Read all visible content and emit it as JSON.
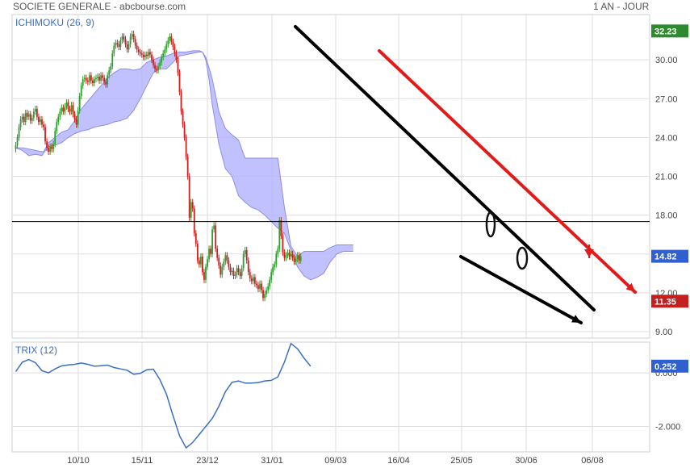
{
  "header": {
    "title": "SOCIETE GENERALE - abcbourse.com",
    "period": "1 AN - JOUR"
  },
  "colors": {
    "up": "#2e9e2e",
    "down": "#cc1f1f",
    "cloud": "#b6b6ff",
    "cloud_line": "#8d8de6",
    "badge_green": "#2d8a2d",
    "badge_blue": "#3060d0",
    "badge_red": "#c42020",
    "trix_line": "#3a6fc4",
    "grid": "#dddddd",
    "annot_black": "#000000",
    "annot_red": "#e31a1a"
  },
  "chart_data": [
    {
      "type": "candlestick",
      "subtitle": "ICHIMOKU (26, 9)",
      "ylim": [
        8.5,
        33.5
      ],
      "yticks": [
        "9.00",
        "12.00",
        "15.00",
        "18.00",
        "21.00",
        "24.00",
        "27.00",
        "30.00"
      ],
      "x_ticks": [
        "10/10",
        "15/11",
        "23/12",
        "31/01",
        "09/03",
        "16/04",
        "25/05",
        "30/06",
        "06/08"
      ],
      "horizontal_line": 17.5,
      "badges": [
        {
          "label": "32.23",
          "value": 32.23,
          "color": "green"
        },
        {
          "label": "14.82",
          "value": 14.82,
          "color": "blue"
        },
        {
          "label": "11.35",
          "value": 11.35,
          "color": "red"
        }
      ],
      "closes": [
        23.4,
        24.0,
        24.8,
        25.4,
        25.6,
        25.2,
        25.9,
        25.6,
        25.8,
        25.3,
        25.5,
        26.0,
        26.2,
        25.6,
        25.2,
        25.4,
        25.0,
        24.8,
        23.7,
        23.2,
        22.9,
        23.3,
        23.1,
        23.5,
        24.5,
        25.2,
        25.6,
        26.0,
        26.3,
        26.0,
        26.4,
        26.7,
        26.2,
        26.0,
        26.5,
        25.8,
        25.4,
        25.0,
        26.1,
        27.2,
        28.0,
        28.5,
        28.6,
        28.4,
        28.3,
        28.8,
        28.4,
        28.2,
        28.5,
        28.6,
        28.7,
        28.4,
        28.8,
        28.6,
        28.3,
        28.1,
        28.8,
        29.2,
        29.5,
        30.5,
        31.1,
        31.3,
        31.2,
        31.0,
        31.5,
        31.8,
        31.6,
        31.2,
        30.8,
        31.2,
        31.8,
        32.0,
        31.6,
        31.1,
        30.8,
        30.6,
        30.5,
        30.4,
        30.2,
        30.4,
        30.3,
        30.6,
        30.4,
        30.0,
        29.6,
        29.3,
        29.2,
        29.5,
        29.8,
        30.2,
        30.5,
        30.8,
        31.2,
        31.5,
        31.8,
        31.4,
        31.0,
        30.5,
        30.0,
        29.0,
        27.5,
        26.0,
        25.0,
        24.0,
        22.5,
        21.0,
        17.8,
        19.0,
        18.5,
        16.6,
        15.8,
        14.5,
        14.2,
        14.8,
        13.6,
        13.0,
        14.0,
        14.6,
        15.4,
        15.0,
        16.9,
        17.2,
        15.4,
        14.7,
        14.1,
        13.4,
        14.0,
        14.4,
        14.9,
        14.5,
        14.0,
        13.6,
        13.7,
        13.3,
        13.4,
        13.9,
        13.6,
        13.3,
        13.9,
        15.0,
        15.3,
        14.5,
        13.6,
        13.1,
        12.9,
        13.2,
        12.7,
        12.6,
        12.3,
        12.7,
        12.2,
        11.6,
        11.9,
        12.2,
        12.5,
        13.0,
        13.6,
        14.0,
        14.2,
        15.0,
        15.4,
        17.6,
        16.4,
        15.1,
        14.7,
        14.9,
        15.1,
        14.8,
        15.0,
        14.7,
        14.4,
        14.6,
        14.9,
        14.5,
        14.82
      ],
      "cloud": {
        "x": [
          0,
          4,
          8,
          12,
          16,
          17,
          20,
          24,
          28,
          32,
          36,
          40,
          44,
          48,
          52,
          56,
          60,
          64,
          68,
          72,
          76,
          80,
          84,
          88,
          92,
          96,
          100,
          104,
          108,
          112,
          114,
          116,
          118,
          120,
          124,
          128,
          132,
          136,
          140,
          144,
          148,
          152,
          156,
          160,
          164,
          168,
          172,
          176,
          180,
          184,
          188,
          192,
          196,
          200,
          204,
          206
        ],
        "span_a": [
          23.2,
          23.2,
          23.1,
          23.0,
          22.9,
          22.9,
          23.6,
          24.0,
          24.4,
          24.6,
          25.3,
          26.2,
          26.8,
          27.4,
          28.0,
          28.6,
          29.0,
          29.3,
          29.3,
          29.2,
          29.3,
          29.8,
          30.0,
          30.2,
          30.3,
          30.5,
          30.6,
          30.6,
          30.7,
          30.7,
          30.6,
          30.2,
          29.4,
          28.5,
          26.0,
          24.7,
          24.2,
          23.8,
          22.4,
          22.4,
          22.4,
          22.4,
          22.4,
          22.4,
          18.6,
          15.6,
          14.8,
          15.2,
          15.2,
          15.2,
          15.2,
          15.5,
          15.7,
          15.7,
          15.7,
          15.7
        ],
        "span_b": [
          23.2,
          23.0,
          22.6,
          22.7,
          22.6,
          22.8,
          23.3,
          23.4,
          23.6,
          24.0,
          24.3,
          24.5,
          24.6,
          24.8,
          24.9,
          25.0,
          25.2,
          25.3,
          25.5,
          26.1,
          27.0,
          28.0,
          29.0,
          29.3,
          29.3,
          29.8,
          30.3,
          30.4,
          30.5,
          30.6,
          30.6,
          30.0,
          28.5,
          26.5,
          23.5,
          21.6,
          21.0,
          19.5,
          19.0,
          18.6,
          18.4,
          18.0,
          17.5,
          17.0,
          16.6,
          15.3,
          14.0,
          13.3,
          13.0,
          13.2,
          13.5,
          14.4,
          15.0,
          15.2,
          15.2,
          15.2
        ]
      }
    },
    {
      "type": "line",
      "subtitle": "TRIX (12)",
      "ylim": [
        -2.95,
        1.15
      ],
      "yticks": [
        "0.000",
        "-2.000"
      ],
      "badges": [
        {
          "label": "0.252",
          "value": 0.252,
          "color": "blue"
        }
      ],
      "x": [
        0,
        4,
        8,
        12,
        16,
        20,
        24,
        28,
        32,
        36,
        40,
        44,
        48,
        52,
        56,
        60,
        64,
        68,
        72,
        76,
        80,
        84,
        88,
        92,
        96,
        100,
        104,
        108,
        112,
        116,
        120,
        124,
        128,
        132,
        136,
        140,
        144,
        148,
        152,
        156,
        160,
        164,
        168,
        172,
        176,
        180
      ],
      "y": [
        0.05,
        0.4,
        0.5,
        0.38,
        0.08,
        0.0,
        0.15,
        0.26,
        0.3,
        0.32,
        0.37,
        0.32,
        0.25,
        0.27,
        0.29,
        0.2,
        0.15,
        0.1,
        -0.05,
        -0.02,
        0.12,
        0.14,
        -0.25,
        -0.8,
        -1.6,
        -2.35,
        -2.8,
        -2.6,
        -2.3,
        -2.0,
        -1.7,
        -1.25,
        -0.7,
        -0.35,
        -0.3,
        -0.38,
        -0.38,
        -0.36,
        -0.3,
        -0.28,
        -0.15,
        0.4,
        1.1,
        0.9,
        0.55,
        0.25
      ]
    }
  ]
}
